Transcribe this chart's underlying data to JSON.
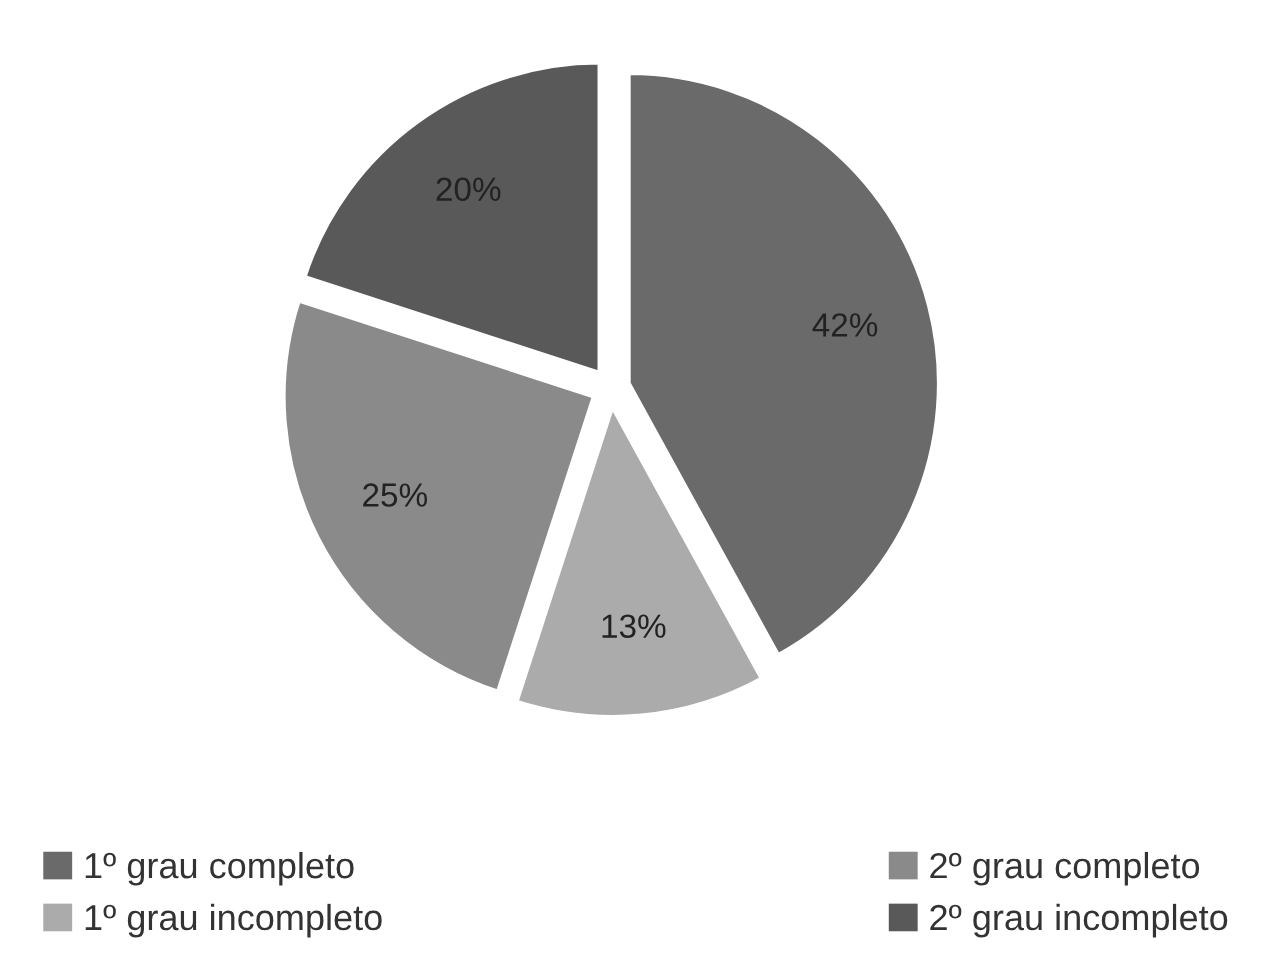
{
  "chart_data": {
    "type": "pie",
    "categories": [
      "1º grau completo",
      "1º grau incompleto",
      "2º grau completo",
      "2º grau incompleto"
    ],
    "values": [
      42,
      13,
      25,
      20
    ],
    "colors": [
      "#6a6a6a",
      "#ababab",
      "#8a8a8a",
      "#595959"
    ],
    "value_labels": [
      "42%",
      "13%",
      "25%",
      "20%"
    ],
    "legend": "bottom"
  }
}
